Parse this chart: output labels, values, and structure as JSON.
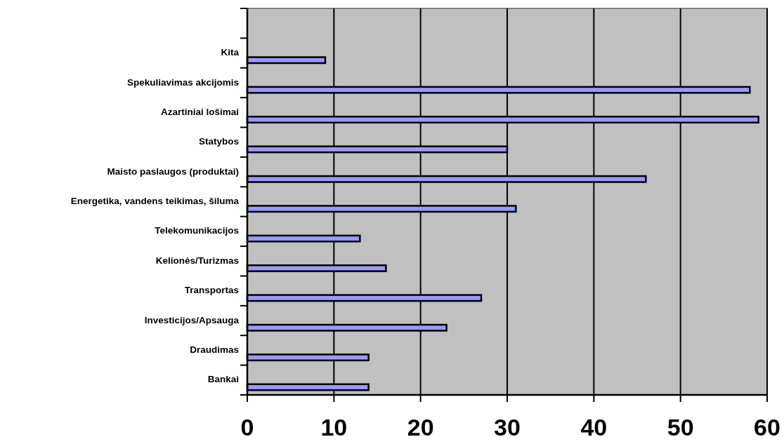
{
  "chart_data": {
    "type": "bar",
    "orientation": "horizontal",
    "categories": [
      null,
      "Kita",
      "Spekuliavimas akcijomis",
      "Azartiniai lošimai",
      "Statybos",
      "Maisto paslaugos (produktai)",
      "Energetika, vandens teikimas, šiluma",
      "Telekomunikacijos",
      "Kelionės/Turizmas",
      "Transportas",
      "Investicijos/Apsauga",
      "Draudimas",
      "Bankai"
    ],
    "values": [
      null,
      9,
      58,
      59,
      30,
      46,
      31,
      13,
      16,
      27,
      23,
      14,
      14
    ],
    "color": "#9999ff",
    "xlim": [
      0,
      60
    ],
    "xticks": [
      0,
      10,
      20,
      30,
      40,
      50,
      60
    ],
    "grid": "x"
  }
}
